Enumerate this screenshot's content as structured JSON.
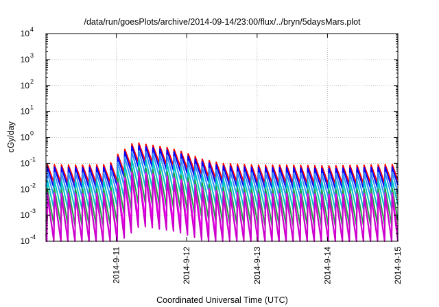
{
  "chart_data": {
    "type": "line",
    "title": "/data/run/goesPlots/archive/2014-09-14/23:00/flux/../bryn/5daysMars.plot",
    "xlabel": "Coordinated Universal Time (UTC)",
    "ylabel": "cGy/day",
    "yscale": "log",
    "ylim": [
      0.0001,
      10000
    ],
    "xlim": [
      0,
      5
    ],
    "x_ticks": [
      {
        "value": 1,
        "label": "2014-9-11"
      },
      {
        "value": 2,
        "label": "2014-9-12"
      },
      {
        "value": 3,
        "label": "2014-9-13"
      },
      {
        "value": 4,
        "label": "2014-9-14"
      },
      {
        "value": 5,
        "label": "2014-9-15"
      }
    ],
    "y_ticks": [
      {
        "value": 0.0001,
        "base": "10",
        "exp": "-4"
      },
      {
        "value": 0.001,
        "base": "10",
        "exp": "-3"
      },
      {
        "value": 0.01,
        "base": "10",
        "exp": "-2"
      },
      {
        "value": 0.1,
        "base": "10",
        "exp": "-1"
      },
      {
        "value": 1,
        "base": "10",
        "exp": "0"
      },
      {
        "value": 10,
        "base": "10",
        "exp": "1"
      },
      {
        "value": 100,
        "base": "10",
        "exp": "2"
      },
      {
        "value": 1000,
        "base": "10",
        "exp": "3"
      },
      {
        "value": 10000,
        "base": "10",
        "exp": "4"
      }
    ],
    "grid": true,
    "cycles_per_day": 10,
    "envelope": {
      "x": [
        0,
        0.5,
        0.9,
        1.0,
        1.25,
        1.5,
        1.75,
        2.0,
        2.2,
        2.5,
        3.0,
        3.5,
        4.0,
        4.5,
        4.8,
        5.0
      ],
      "peak": [
        0.09,
        0.085,
        0.09,
        0.2,
        0.65,
        0.5,
        0.4,
        0.25,
        0.15,
        0.1,
        0.085,
        0.085,
        0.08,
        0.085,
        0.09,
        0.09
      ]
    },
    "series": [
      {
        "color": "#ff0000",
        "peak_scale": 1.0,
        "trough_ratio": 0.2
      },
      {
        "color": "#0000ff",
        "peak_scale": 0.8,
        "trough_ratio": 0.16
      },
      {
        "color": "#3090ff",
        "peak_scale": 0.5,
        "trough_ratio": 0.12
      },
      {
        "color": "#00c8c8",
        "peak_scale": 0.25,
        "trough_ratio": 0.08
      },
      {
        "color": "#22a044",
        "peak_scale": 0.12,
        "trough_ratio": 0.04
      },
      {
        "color": "#ff00ff",
        "peak_scale": 0.08,
        "trough_ratio": 0.015
      },
      {
        "color": "#cc00cc",
        "peak_scale": 0.06,
        "trough_ratio": 0.01
      }
    ]
  }
}
